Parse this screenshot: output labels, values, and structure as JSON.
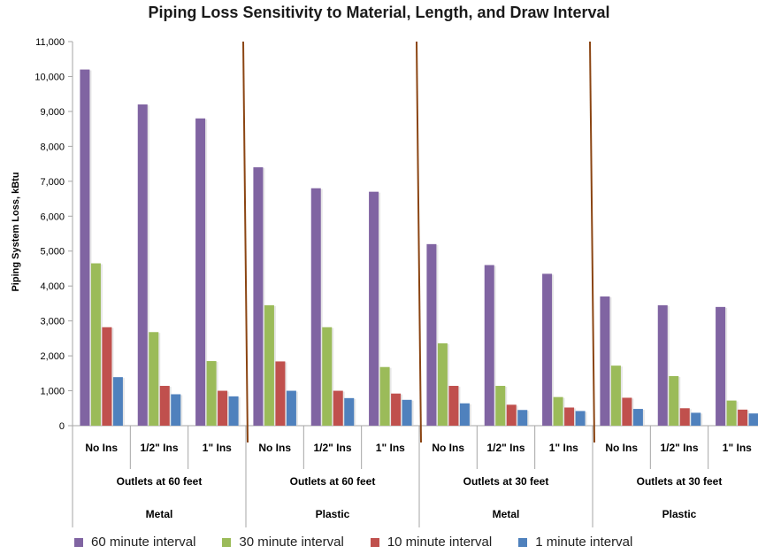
{
  "chart_data": {
    "type": "bar",
    "title": "Piping Loss Sensitivity to Material, Length, and Draw Interval",
    "ylabel": "Piping System Loss, kBtu",
    "xlabel": "",
    "ylim": [
      0,
      11000
    ],
    "yticks": [
      "0",
      "1,000",
      "2,000",
      "3,000",
      "4,000",
      "5,000",
      "6,000",
      "7,000",
      "8,000",
      "9,000",
      "10,000",
      "11,000"
    ],
    "grid": false,
    "legend_position": "bottom",
    "categories": [
      "No Ins",
      "1/2\" Ins",
      "1\" Ins",
      "No Ins",
      "1/2\" Ins",
      "1\" Ins",
      "No Ins",
      "1/2\" Ins",
      "1\" Ins",
      "No Ins",
      "1/2\" Ins",
      "1\" Ins"
    ],
    "groups_level2": [
      {
        "label": "Outlets at 60 feet",
        "span": 3
      },
      {
        "label": "Outlets at 60 feet",
        "span": 3
      },
      {
        "label": "Outlets at 30 feet",
        "span": 3
      },
      {
        "label": "Outlets at 30 feet",
        "span": 3
      }
    ],
    "groups_level3": [
      {
        "label": "Metal",
        "span": 3
      },
      {
        "label": "Plastic",
        "span": 3
      },
      {
        "label": "Metal",
        "span": 3
      },
      {
        "label": "Plastic",
        "span": 3
      }
    ],
    "series": [
      {
        "name": "60 minute interval",
        "color": "#8064a2",
        "values": [
          10200,
          9200,
          8800,
          7400,
          6800,
          6700,
          5200,
          4600,
          4350,
          3700,
          3450,
          3400
        ]
      },
      {
        "name": "30 minute interval",
        "color": "#9bbb59",
        "values": [
          4650,
          2680,
          1850,
          3450,
          2820,
          1680,
          2360,
          1140,
          820,
          1720,
          1420,
          720
        ]
      },
      {
        "name": "10 minute interval",
        "color": "#c0504d",
        "values": [
          2820,
          1140,
          1000,
          1840,
          1000,
          920,
          1140,
          600,
          520,
          800,
          500,
          460
        ]
      },
      {
        "name": "1 minute interval",
        "color": "#4f81bd",
        "values": [
          1390,
          900,
          840,
          1000,
          790,
          740,
          640,
          450,
          420,
          480,
          370,
          350
        ]
      }
    ],
    "axis_color": "#a6a6a6",
    "separator_color": "#8b4513"
  }
}
